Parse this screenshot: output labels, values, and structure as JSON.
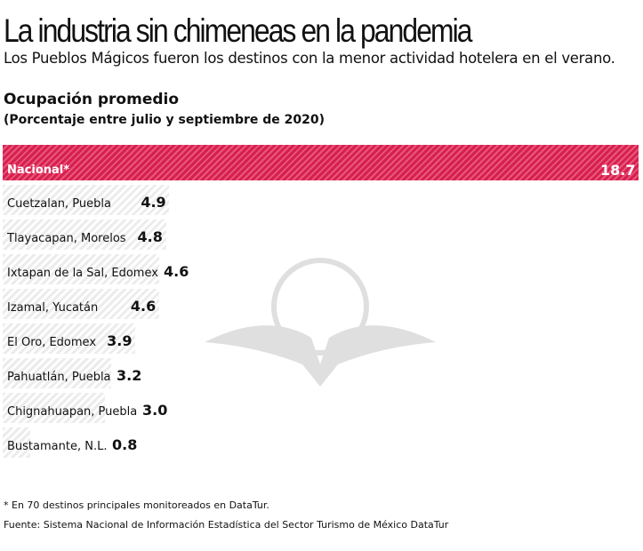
{
  "title": "La industria sin chimeneas en la pandemia",
  "subtitle": "Los Pueblos Mágicos fueron los destinos con la menor actividad hotelera en el verano.",
  "chart_data": {
    "type": "bar",
    "orientation": "horizontal",
    "title": "Ocupación promedio",
    "subtitle": "(Porcentaje entre julio y septiembre de 2020)",
    "categories": [
      "Nacional*",
      "Cuetzalan, Puebla",
      "Tlayacapan, Morelos",
      "Ixtapan de la Sal, Edomex",
      "Izamal, Yucatán",
      "El Oro, Edomex",
      "Pahuatlán, Puebla",
      "Chignahuapan, Puebla",
      "Bustamante, N.L."
    ],
    "values": [
      18.7,
      4.9,
      4.8,
      4.6,
      4.6,
      3.9,
      3.2,
      3.0,
      0.8
    ],
    "value_labels": [
      "18.7",
      "4.9",
      "4.8",
      "4.6",
      "4.6",
      "3.9",
      "3.2",
      "3.0",
      "0.8"
    ],
    "colors": {
      "highlight": "#d6204f",
      "default": "#e6e6e6"
    }
  },
  "footnote": "* En 70 destinos principales monitoreados en DataTur.",
  "source": "Fuente: Sistema Nacional de Información Estadística del Sector Turismo de México DataTur"
}
